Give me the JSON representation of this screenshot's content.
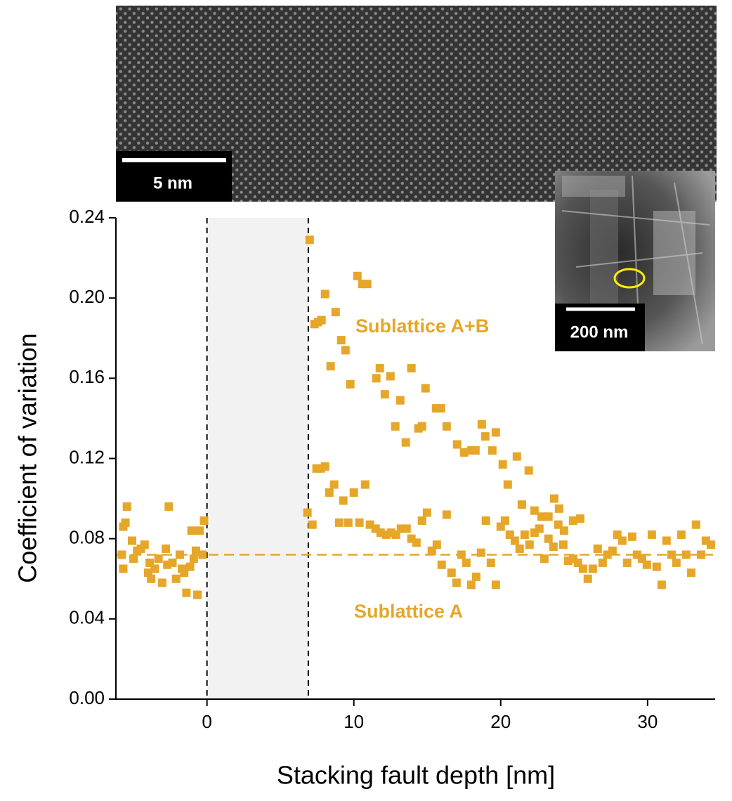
{
  "chart_data": {
    "type": "scatter",
    "xlabel": "Stacking fault depth [nm]",
    "ylabel": "Coefficient of variation",
    "xlim": [
      -6.2,
      34.6
    ],
    "ylim": [
      0,
      0.24
    ],
    "xticks": [
      0,
      10,
      20,
      30
    ],
    "yticks": [
      {
        "value": 0,
        "label": "0.00"
      },
      0.04,
      0.08,
      0.12,
      0.16,
      {
        "value": 0.2,
        "label": "0.20"
      },
      0.24
    ],
    "shaded_region": [
      0,
      6.9
    ],
    "reference_line": 0.072,
    "annotations": [
      "Sublattice A+B",
      "Sublattice A"
    ],
    "scale_bars": [
      "5 nm",
      "200 nm"
    ],
    "series": [
      {
        "color": "#e6a62a",
        "x": [
          -5.8,
          -5.7,
          -5.55,
          -5.45,
          -5.7,
          -5.1,
          -5.0,
          -4.75,
          -4.5,
          -4.25,
          -4.0,
          -3.9,
          -3.8,
          -3.55,
          -3.3,
          -3.05,
          -2.8,
          -2.7,
          -2.6,
          -2.35,
          -2.1,
          -1.85,
          -1.7,
          -1.55,
          -1.4,
          -1.15,
          -1.05,
          -0.9,
          -0.75,
          -0.65,
          -0.5,
          -0.3,
          -0.2,
          6.99,
          7.32,
          7.56,
          7.8,
          8.04,
          8.42,
          8.76,
          9.14,
          9.43,
          9.76,
          10.24,
          10.57,
          10.91,
          11.53,
          11.77,
          12.11,
          12.49,
          12.82,
          13.16,
          13.54,
          13.92,
          14.4,
          14.64,
          14.88,
          15.6,
          15.93,
          16.32,
          17.03,
          17.51,
          17.99,
          18.28,
          18.71,
          18.95,
          19.43,
          19.67,
          20.14,
          20.48,
          21.1,
          21.44,
          21.91,
          22.3,
          22.78,
          23.25,
          23.64,
          23.97,
          24.31,
          24.93,
          25.41,
          6.84,
          7.18,
          7.46,
          7.75,
          8.04,
          8.33,
          8.66,
          9.0,
          9.28,
          9.62,
          10.0,
          10.38,
          10.77,
          11.1,
          11.48,
          11.82,
          12.2,
          12.54,
          12.87,
          13.21,
          13.59,
          13.92,
          14.26,
          14.64,
          14.98,
          15.31,
          15.65,
          15.98,
          16.32,
          16.65,
          16.99,
          17.32,
          17.66,
          17.99,
          18.33,
          18.66,
          18.99,
          19.33,
          19.67,
          20.0,
          20.29,
          20.62,
          20.96,
          21.29,
          21.63,
          21.96,
          22.3,
          22.63,
          22.97,
          23.25,
          23.59,
          23.92,
          24.26,
          24.59,
          24.93,
          25.26,
          25.6,
          25.93,
          26.27,
          26.6,
          26.94,
          27.27,
          27.61,
          27.94,
          28.28,
          28.61,
          28.95,
          29.28,
          29.62,
          29.95,
          30.29,
          30.62,
          30.96,
          31.29,
          31.63,
          31.96,
          32.3,
          32.63,
          32.97,
          33.3,
          33.64,
          33.97,
          34.31
        ],
        "values": [
          0.072,
          0.086,
          0.088,
          0.096,
          0.065,
          0.079,
          0.07,
          0.074,
          0.075,
          0.077,
          0.063,
          0.068,
          0.06,
          0.065,
          0.07,
          0.058,
          0.075,
          0.067,
          0.096,
          0.068,
          0.06,
          0.072,
          0.065,
          0.063,
          0.053,
          0.066,
          0.084,
          0.07,
          0.074,
          0.052,
          0.084,
          0.072,
          0.089,
          0.229,
          0.187,
          0.188,
          0.189,
          0.202,
          0.166,
          0.193,
          0.179,
          0.174,
          0.157,
          0.211,
          0.207,
          0.207,
          0.16,
          0.165,
          0.152,
          0.161,
          0.136,
          0.149,
          0.128,
          0.165,
          0.135,
          0.136,
          0.155,
          0.145,
          0.145,
          0.136,
          0.127,
          0.123,
          0.124,
          0.124,
          0.137,
          0.131,
          0.124,
          0.133,
          0.117,
          0.107,
          0.121,
          0.097,
          0.114,
          0.094,
          0.091,
          0.091,
          0.1,
          0.095,
          0.084,
          0.089,
          0.09,
          0.093,
          0.087,
          0.115,
          0.115,
          0.116,
          0.103,
          0.107,
          0.088,
          0.099,
          0.088,
          0.103,
          0.088,
          0.107,
          0.087,
          0.085,
          0.083,
          0.082,
          0.083,
          0.082,
          0.085,
          0.085,
          0.08,
          0.078,
          0.089,
          0.093,
          0.074,
          0.077,
          0.067,
          0.092,
          0.063,
          0.058,
          0.072,
          0.068,
          0.057,
          0.061,
          0.073,
          0.089,
          0.068,
          0.057,
          0.086,
          0.089,
          0.082,
          0.079,
          0.075,
          0.082,
          0.077,
          0.083,
          0.085,
          0.07,
          0.08,
          0.076,
          0.087,
          0.077,
          0.069,
          0.07,
          0.068,
          0.065,
          0.06,
          0.065,
          0.075,
          0.068,
          0.072,
          0.074,
          0.082,
          0.079,
          0.068,
          0.081,
          0.072,
          0.07,
          0.067,
          0.082,
          0.066,
          0.057,
          0.079,
          0.072,
          0.068,
          0.082,
          0.072,
          0.063,
          0.087,
          0.072,
          0.079,
          0.077
        ]
      }
    ]
  }
}
